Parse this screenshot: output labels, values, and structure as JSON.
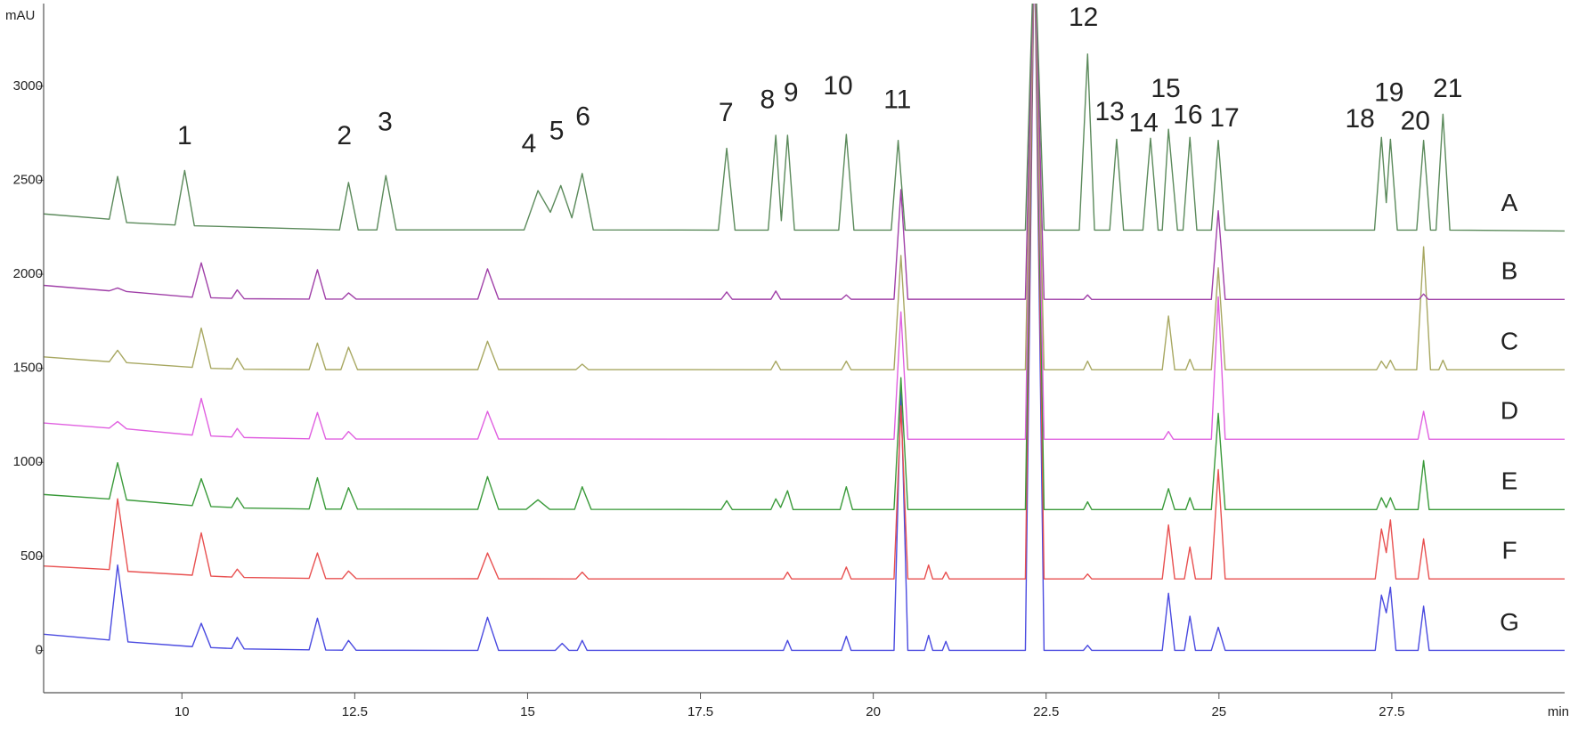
{
  "chart_data": {
    "type": "line",
    "y_label": "mAU",
    "x_label": "min",
    "xlim": [
      8,
      30
    ],
    "ylim": [
      -225,
      3430
    ],
    "xticks": [
      10,
      12.5,
      15,
      17.5,
      20,
      22.5,
      25,
      27.5
    ],
    "yticks": [
      0,
      500,
      1000,
      1500,
      2000,
      2500,
      3000
    ],
    "series": [
      {
        "name": "A",
        "color": "#5b8a5b",
        "x": [
          8,
          8.95,
          9.07,
          9.2,
          9.9,
          10.04,
          10.18,
          12.28,
          12.41,
          12.55,
          12.82,
          12.95,
          13.1,
          14.95,
          15.15,
          15.33,
          15.48,
          15.64,
          15.79,
          15.95,
          17.76,
          17.88,
          18.0,
          18.48,
          18.59,
          18.67,
          18.76,
          18.86,
          19.5,
          19.61,
          19.72,
          20.26,
          20.36,
          20.46,
          22.2,
          22.33,
          22.47,
          22.98,
          23.1,
          23.2,
          23.42,
          23.52,
          23.62,
          23.9,
          24.01,
          24.12,
          24.18,
          24.27,
          24.4,
          24.48,
          24.58,
          24.68,
          24.89,
          24.99,
          25.09,
          27.25,
          27.35,
          27.42,
          27.48,
          27.58,
          27.86,
          27.96,
          28.06,
          28.14,
          28.24,
          28.34,
          30
        ],
        "values": [
          2321,
          2293,
          2520,
          2275,
          2262,
          2552,
          2258,
          2236,
          2488,
          2236,
          2236,
          2525,
          2236,
          2236,
          2445,
          2330,
          2472,
          2300,
          2536,
          2236,
          2235,
          2670,
          2235,
          2235,
          2739,
          2285,
          2739,
          2235,
          2235,
          2744,
          2235,
          2235,
          2712,
          2235,
          2235,
          3800,
          2235,
          2235,
          3171,
          2235,
          2235,
          2718,
          2235,
          2235,
          2723,
          2235,
          2235,
          2771,
          2235,
          2235,
          2728,
          2235,
          2235,
          2712,
          2235,
          2235,
          2728,
          2381,
          2718,
          2235,
          2235,
          2712,
          2235,
          2235,
          2851,
          2235,
          2230
        ]
      },
      {
        "name": "B",
        "color": "#a040a8",
        "x": [
          8,
          8.95,
          9.07,
          9.2,
          10.15,
          10.28,
          10.42,
          10.72,
          10.8,
          10.9,
          11.84,
          11.96,
          12.08,
          12.32,
          12.41,
          12.52,
          14.28,
          14.42,
          14.58,
          17.8,
          17.88,
          17.96,
          18.52,
          18.59,
          18.66,
          19.54,
          19.61,
          19.68,
          20.3,
          20.4,
          20.5,
          22.2,
          22.33,
          22.47,
          23.04,
          23.1,
          23.16,
          24.89,
          24.99,
          25.09,
          27.89,
          27.96,
          28.03,
          30
        ],
        "values": [
          1941,
          1912,
          1927,
          1908,
          1878,
          2061,
          1875,
          1872,
          1917,
          1870,
          1868,
          2024,
          1868,
          1868,
          1901,
          1868,
          1868,
          2029,
          1868,
          1867,
          1906,
          1867,
          1867,
          1911,
          1867,
          1867,
          1890,
          1867,
          1867,
          2450,
          1867,
          1867,
          3800,
          1867,
          1866,
          1890,
          1866,
          1866,
          2338,
          1866,
          1866,
          1895,
          1866,
          1866
        ]
      },
      {
        "name": "C",
        "color": "#a8a862",
        "x": [
          8,
          8.95,
          9.07,
          9.2,
          10.15,
          10.28,
          10.42,
          10.72,
          10.8,
          10.9,
          11.84,
          11.96,
          12.08,
          12.3,
          12.41,
          12.54,
          14.28,
          14.42,
          14.58,
          15.7,
          15.79,
          15.88,
          18.52,
          18.59,
          18.66,
          19.54,
          19.61,
          19.68,
          20.3,
          20.4,
          20.5,
          22.2,
          22.33,
          22.47,
          23.04,
          23.1,
          23.16,
          24.18,
          24.27,
          24.36,
          24.52,
          24.58,
          24.64,
          24.89,
          24.99,
          25.09,
          27.28,
          27.35,
          27.42,
          27.48,
          27.55,
          27.86,
          27.96,
          28.06,
          28.18,
          28.24,
          28.3,
          30
        ],
        "values": [
          1561,
          1535,
          1596,
          1530,
          1505,
          1714,
          1500,
          1497,
          1554,
          1495,
          1493,
          1634,
          1493,
          1493,
          1612,
          1493,
          1493,
          1644,
          1493,
          1493,
          1522,
          1493,
          1492,
          1538,
          1492,
          1492,
          1538,
          1492,
          1492,
          2100,
          1492,
          1492,
          3800,
          1492,
          1492,
          1538,
          1492,
          1492,
          1778,
          1492,
          1492,
          1548,
          1492,
          1492,
          2034,
          1492,
          1492,
          1538,
          1500,
          1543,
          1492,
          1492,
          2146,
          1492,
          1492,
          1543,
          1492,
          1492
        ]
      },
      {
        "name": "D",
        "color": "#e060e0",
        "x": [
          8,
          8.95,
          9.07,
          9.2,
          10.15,
          10.28,
          10.42,
          10.72,
          10.8,
          10.9,
          11.84,
          11.96,
          12.08,
          12.32,
          12.41,
          12.52,
          14.28,
          14.42,
          14.58,
          20.3,
          20.4,
          20.5,
          22.2,
          22.33,
          22.47,
          24.2,
          24.27,
          24.34,
          24.89,
          24.99,
          25.09,
          27.88,
          27.96,
          28.04,
          30
        ],
        "values": [
          1209,
          1182,
          1217,
          1178,
          1145,
          1340,
          1140,
          1135,
          1180,
          1132,
          1125,
          1265,
          1124,
          1124,
          1164,
          1124,
          1124,
          1271,
          1124,
          1123,
          1800,
          1123,
          1123,
          3800,
          1123,
          1123,
          1164,
          1123,
          1123,
          1880,
          1123,
          1123,
          1271,
          1123,
          1123
        ]
      },
      {
        "name": "E",
        "color": "#3a9a3a",
        "x": [
          8,
          8.95,
          9.07,
          9.2,
          10.15,
          10.28,
          10.42,
          10.72,
          10.8,
          10.9,
          11.84,
          11.96,
          12.08,
          12.3,
          12.41,
          12.54,
          14.28,
          14.42,
          14.58,
          14.98,
          15.15,
          15.32,
          15.68,
          15.79,
          15.92,
          17.8,
          17.88,
          17.96,
          18.52,
          18.59,
          18.66,
          18.76,
          18.84,
          19.52,
          19.61,
          19.7,
          20.3,
          20.4,
          20.5,
          22.2,
          22.33,
          22.47,
          23.04,
          23.1,
          23.16,
          24.18,
          24.27,
          24.36,
          24.52,
          24.58,
          24.64,
          24.89,
          24.99,
          25.09,
          27.28,
          27.35,
          27.42,
          27.48,
          27.55,
          27.88,
          27.96,
          28.04,
          30
        ],
        "values": [
          829,
          805,
          998,
          800,
          770,
          913,
          765,
          760,
          812,
          757,
          752,
          918,
          751,
          751,
          865,
          751,
          750,
          924,
          750,
          750,
          801,
          750,
          750,
          870,
          750,
          749,
          796,
          749,
          749,
          806,
          760,
          849,
          749,
          749,
          870,
          749,
          749,
          1450,
          749,
          749,
          3800,
          749,
          749,
          790,
          749,
          749,
          860,
          749,
          749,
          812,
          749,
          749,
          1260,
          749,
          749,
          812,
          760,
          812,
          749,
          749,
          1009,
          749,
          749
        ]
      },
      {
        "name": "F",
        "color": "#e85050",
        "x": [
          8,
          8.95,
          9.07,
          9.22,
          10.15,
          10.28,
          10.42,
          10.72,
          10.8,
          10.9,
          11.84,
          11.96,
          12.08,
          12.32,
          12.41,
          12.52,
          14.28,
          14.42,
          14.58,
          15.7,
          15.79,
          15.88,
          18.7,
          18.76,
          18.82,
          19.54,
          19.61,
          19.68,
          20.3,
          20.4,
          20.5,
          20.74,
          20.8,
          20.86,
          21.0,
          21.05,
          21.1,
          22.2,
          22.33,
          22.47,
          23.04,
          23.1,
          23.16,
          24.18,
          24.27,
          24.36,
          24.5,
          24.58,
          24.66,
          24.89,
          24.99,
          25.09,
          27.26,
          27.35,
          27.42,
          27.48,
          27.56,
          27.88,
          27.96,
          28.04,
          30
        ],
        "values": [
          449,
          430,
          806,
          420,
          400,
          625,
          395,
          390,
          432,
          388,
          383,
          518,
          382,
          382,
          422,
          382,
          381,
          518,
          381,
          380,
          416,
          380,
          380,
          416,
          380,
          380,
          443,
          380,
          380,
          1300,
          380,
          380,
          454,
          380,
          380,
          416,
          380,
          380,
          3800,
          380,
          380,
          406,
          380,
          380,
          667,
          380,
          380,
          550,
          380,
          380,
          961,
          380,
          380,
          646,
          520,
          694,
          380,
          380,
          593,
          380,
          380
        ]
      },
      {
        "name": "G",
        "color": "#4a4ae0",
        "x": [
          8,
          8.95,
          9.07,
          9.22,
          10.15,
          10.28,
          10.42,
          10.72,
          10.8,
          10.9,
          11.84,
          11.96,
          12.08,
          12.32,
          12.41,
          12.52,
          14.28,
          14.42,
          14.58,
          15.4,
          15.5,
          15.6,
          15.72,
          15.79,
          15.86,
          18.7,
          18.76,
          18.82,
          19.54,
          19.61,
          19.68,
          20.3,
          20.4,
          20.5,
          20.74,
          20.8,
          20.86,
          21.0,
          21.05,
          21.1,
          22.2,
          22.33,
          22.47,
          23.04,
          23.1,
          23.16,
          24.18,
          24.27,
          24.36,
          24.5,
          24.58,
          24.66,
          24.89,
          24.99,
          25.09,
          27.26,
          27.35,
          27.42,
          27.48,
          27.56,
          27.88,
          27.96,
          28.04,
          30
        ],
        "values": [
          86,
          55,
          454,
          45,
          20,
          144,
          15,
          10,
          69,
          8,
          3,
          171,
          2,
          1,
          53,
          1,
          0,
          176,
          0,
          0,
          37,
          0,
          0,
          53,
          0,
          0,
          53,
          0,
          0,
          75,
          0,
          0,
          1400,
          0,
          0,
          80,
          0,
          0,
          48,
          0,
          0,
          3800,
          0,
          0,
          27,
          0,
          0,
          304,
          0,
          0,
          182,
          0,
          0,
          123,
          0,
          0,
          294,
          200,
          336,
          0,
          0,
          235,
          0,
          0
        ]
      }
    ],
    "annotations": [
      {
        "text": "1",
        "x": 10.04,
        "y": 2728
      },
      {
        "text": "2",
        "x": 12.35,
        "y": 2728
      },
      {
        "text": "3",
        "x": 12.94,
        "y": 2803
      },
      {
        "text": "4",
        "x": 15.02,
        "y": 2686
      },
      {
        "text": "5",
        "x": 15.42,
        "y": 2755
      },
      {
        "text": "6",
        "x": 15.8,
        "y": 2830
      },
      {
        "text": "7",
        "x": 17.87,
        "y": 2851
      },
      {
        "text": "8",
        "x": 18.47,
        "y": 2920
      },
      {
        "text": "9",
        "x": 18.81,
        "y": 2958
      },
      {
        "text": "10",
        "x": 19.49,
        "y": 2995
      },
      {
        "text": "11",
        "x": 20.35,
        "y": 2920
      },
      {
        "text": "12",
        "x": 23.04,
        "y": 3358
      },
      {
        "text": "13",
        "x": 23.42,
        "y": 2856
      },
      {
        "text": "14",
        "x": 23.91,
        "y": 2798
      },
      {
        "text": "15",
        "x": 24.23,
        "y": 2979
      },
      {
        "text": "16",
        "x": 24.55,
        "y": 2840
      },
      {
        "text": "17",
        "x": 25.08,
        "y": 2824
      },
      {
        "text": "18",
        "x": 27.04,
        "y": 2819
      },
      {
        "text": "19",
        "x": 27.46,
        "y": 2958
      },
      {
        "text": "20",
        "x": 27.84,
        "y": 2808
      },
      {
        "text": "21",
        "x": 28.31,
        "y": 2979
      }
    ]
  }
}
